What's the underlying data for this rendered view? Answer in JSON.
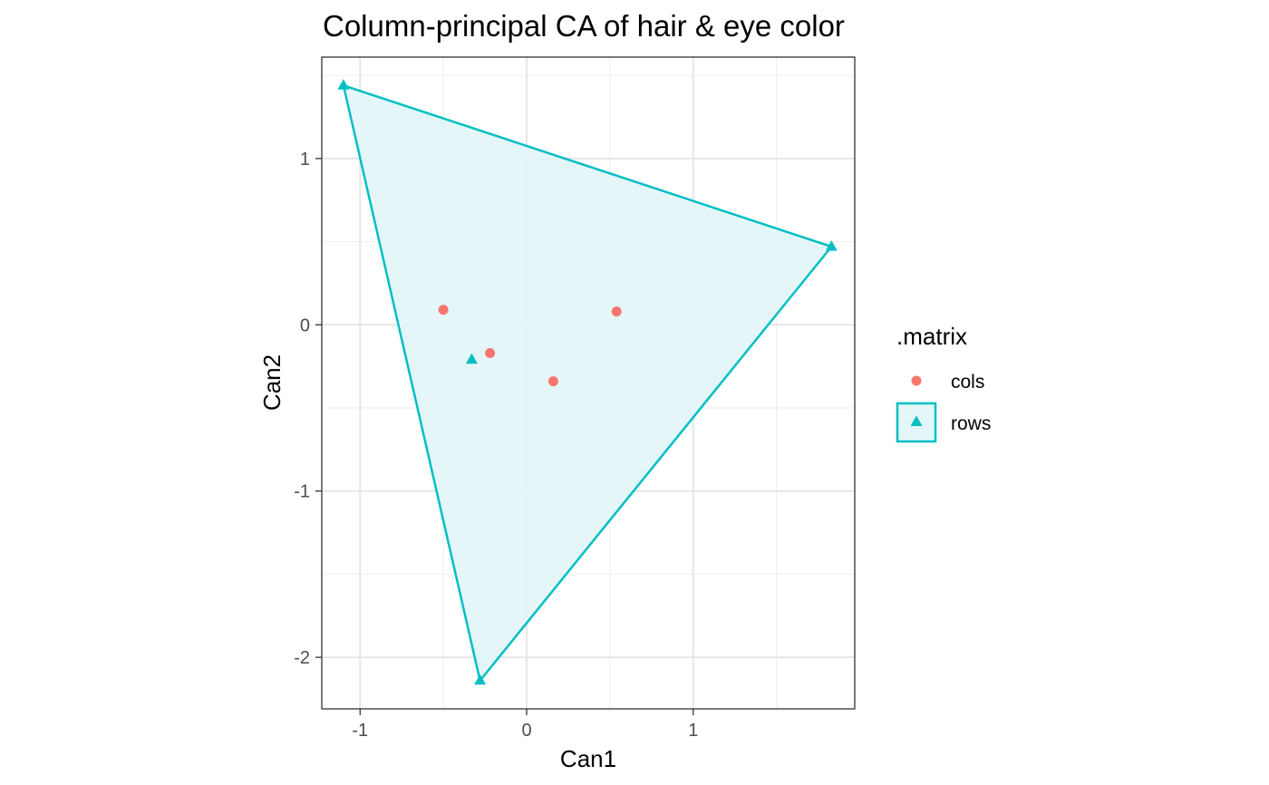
{
  "chart_data": {
    "type": "scatter",
    "title": "Column-principal CA of hair & eye color",
    "xlabel": "Can1",
    "ylabel": "Can2",
    "xlim": [
      -1.23,
      1.97
    ],
    "ylim": [
      -2.31,
      1.61
    ],
    "x_ticks": [
      -1,
      0,
      1
    ],
    "x_tick_labels": [
      "-1",
      "0",
      "1"
    ],
    "y_ticks": [
      1,
      0,
      -1,
      -2
    ],
    "y_tick_labels": [
      "1",
      "0",
      "-1",
      "-2"
    ],
    "x_minor_ticks": [
      -0.5,
      0.5,
      1.5
    ],
    "y_minor_ticks": [
      1.5,
      0.5,
      -0.5,
      -1.5
    ],
    "grid": true,
    "legend": {
      "title": ".matrix",
      "position": "right",
      "entries": [
        "cols",
        "rows"
      ]
    },
    "colors": {
      "cols": "#F8766D",
      "rows": "#00BFC4",
      "rows_fill": "#E3F6F8"
    },
    "series": [
      {
        "name": "cols",
        "shape": "circle",
        "x": [
          -0.5,
          -0.22,
          0.16,
          0.54
        ],
        "y": [
          0.09,
          -0.17,
          -0.34,
          0.08
        ]
      },
      {
        "name": "rows",
        "shape": "triangle",
        "x": [
          -1.1,
          -0.33,
          -0.28,
          1.83
        ],
        "y": [
          1.44,
          -0.21,
          -2.14,
          0.47
        ]
      }
    ],
    "hull": {
      "series": "rows",
      "x": [
        -1.1,
        1.83,
        -0.28
      ],
      "y": [
        1.44,
        0.47,
        -2.14
      ]
    }
  }
}
